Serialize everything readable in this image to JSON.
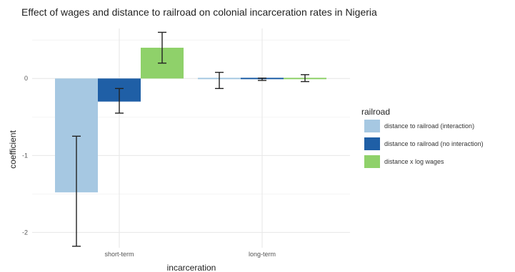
{
  "chart_data": {
    "type": "bar",
    "title": "Effect of wages and distance to railroad on colonial incarceration rates in Nigeria",
    "xlabel": "incarceration",
    "ylabel": "coefficient",
    "categories": [
      "short-term",
      "long-term"
    ],
    "yticks": [
      "-2",
      "-1",
      "0"
    ],
    "ylim": [
      -2.2,
      0.65
    ],
    "grid": true,
    "legend": {
      "title": "railroad",
      "placement": "right"
    },
    "series": [
      {
        "name": "distance to railroad (interaction)",
        "color": "#a6c8e2",
        "values": [
          -1.48,
          -0.01
        ],
        "err_low": [
          -2.18,
          -0.13
        ],
        "err_high": [
          -0.75,
          0.08
        ]
      },
      {
        "name": "distance to railroad (no interaction)",
        "color": "#1f5fa6",
        "values": [
          -0.3,
          -0.01
        ],
        "err_low": [
          -0.45,
          -0.025
        ],
        "err_high": [
          -0.13,
          0.005
        ]
      },
      {
        "name": "distance x log wages",
        "color": "#8fd16a",
        "values": [
          0.4,
          0.0
        ],
        "err_low": [
          0.2,
          -0.04
        ],
        "err_high": [
          0.6,
          0.05
        ]
      }
    ]
  }
}
